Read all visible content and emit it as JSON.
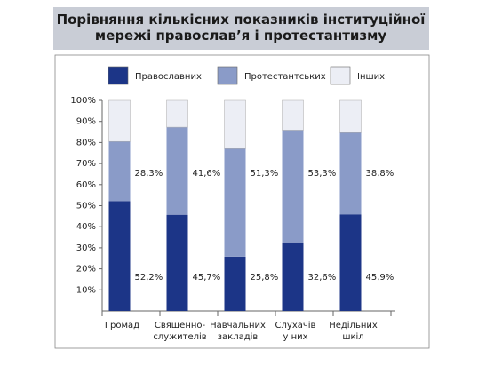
{
  "chart_data": {
    "type": "stacked_bar",
    "title": "Порівняння кількісних показників інституційної\nмережі православ’я і протестантизму",
    "categories": [
      "Громад",
      "Священно-\nслужителів",
      "Навчальних\nзакладів",
      "Слухачів\nу них",
      "Недільних\nшкіл"
    ],
    "series": [
      {
        "name": "Православних",
        "color": "#1c3587",
        "values": [
          52.2,
          45.7,
          25.8,
          32.6,
          45.9
        ],
        "value_labels": [
          "52,2%",
          "45,7%",
          "25,8%",
          "32,6%",
          "45,9%"
        ]
      },
      {
        "name": "Протестантських",
        "color": "#8a9bc8",
        "values": [
          28.3,
          41.6,
          51.3,
          53.3,
          38.8
        ],
        "value_labels": [
          "28,3%",
          "41,6%",
          "51,3%",
          "53,3%",
          "38,8%"
        ]
      },
      {
        "name": "Інших",
        "color": "#eceef5",
        "values": [
          19.5,
          12.7,
          22.9,
          14.1,
          15.3
        ]
      }
    ],
    "ylim": [
      0,
      100
    ],
    "yticks": [
      {
        "value": 10,
        "label": "10%"
      },
      {
        "value": 20,
        "label": "20%"
      },
      {
        "value": 30,
        "label": "30%"
      },
      {
        "value": 40,
        "label": "40%"
      },
      {
        "value": 50,
        "label": "50%"
      },
      {
        "value": 60,
        "label": "60%"
      },
      {
        "value": 70,
        "label": "70%"
      },
      {
        "value": 80,
        "label": "80%"
      },
      {
        "value": 90,
        "label": "90%"
      },
      {
        "value": 100,
        "label": "100%"
      }
    ]
  }
}
